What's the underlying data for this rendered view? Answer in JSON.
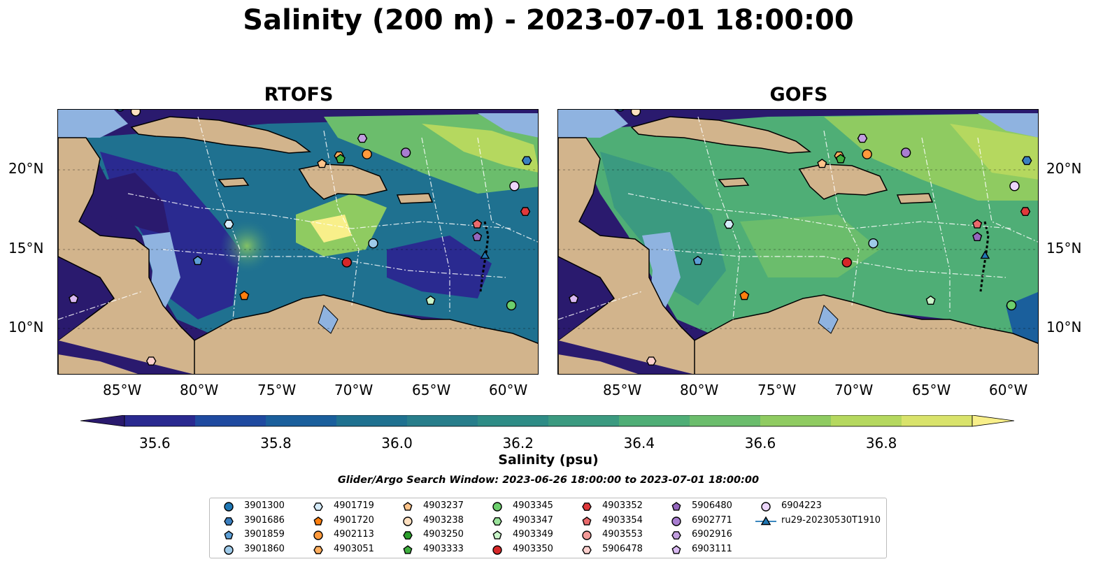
{
  "title": "Salinity (200 m) - 2023-07-01 18:00:00",
  "panels": [
    {
      "title": "RTOFS"
    },
    {
      "title": "GOFS"
    }
  ],
  "axes": {
    "lon_labels": [
      "85°W",
      "80°W",
      "75°W",
      "70°W",
      "65°W",
      "60°W"
    ],
    "lat_labels": [
      "20°N",
      "15°N",
      "10°N"
    ]
  },
  "colorbar": {
    "label": "Salinity (psu)",
    "ticks": [
      "35.6",
      "35.8",
      "36.0",
      "36.2",
      "36.4",
      "36.6",
      "36.8"
    ],
    "range": [
      35.55,
      36.95
    ],
    "extend": "both",
    "colors": [
      "#2a1a6e",
      "#2a2a90",
      "#1f4aa0",
      "#1a5f9c",
      "#1f7190",
      "#287e8b",
      "#2e8c86",
      "#3b9a80",
      "#4fae76",
      "#6bbd6c",
      "#8fcb61",
      "#b5d85f",
      "#d9e36b",
      "#f8ef8a"
    ]
  },
  "search_window": "Glider/Argo Search Window: 2023-06-26 18:00:00 to 2023-07-01 18:00:00",
  "legend": {
    "items": [
      {
        "label": "3901300",
        "shape": "circle",
        "color": "#1f77b4"
      },
      {
        "label": "3901686",
        "shape": "hexagon",
        "color": "#3a7fc0"
      },
      {
        "label": "3901859",
        "shape": "pentagon",
        "color": "#5d9fd6"
      },
      {
        "label": "3901860",
        "shape": "circle",
        "color": "#9ecae9"
      },
      {
        "label": "4901719",
        "shape": "hexagon",
        "color": "#d6ecfa"
      },
      {
        "label": "4901720",
        "shape": "pentagon",
        "color": "#ff7f0e"
      },
      {
        "label": "4902113",
        "shape": "circle",
        "color": "#ff9a3c"
      },
      {
        "label": "4903051",
        "shape": "hexagon",
        "color": "#ffae5e"
      },
      {
        "label": "4903237",
        "shape": "pentagon",
        "color": "#ffc48a"
      },
      {
        "label": "4903238",
        "shape": "circle",
        "color": "#ffe0c0"
      },
      {
        "label": "4903250",
        "shape": "hexagon",
        "color": "#2ca02c"
      },
      {
        "label": "4903333",
        "shape": "pentagon",
        "color": "#3fb03f"
      },
      {
        "label": "4903345",
        "shape": "circle",
        "color": "#6ccf6c"
      },
      {
        "label": "4903347",
        "shape": "hexagon",
        "color": "#9be39b"
      },
      {
        "label": "4903349",
        "shape": "pentagon",
        "color": "#c9f5c9"
      },
      {
        "label": "4903350",
        "shape": "circle",
        "color": "#d62728"
      },
      {
        "label": "4903352",
        "shape": "hexagon",
        "color": "#e0393b"
      },
      {
        "label": "4903354",
        "shape": "pentagon",
        "color": "#ea6a6c"
      },
      {
        "label": "4903553",
        "shape": "circle",
        "color": "#f39a98"
      },
      {
        "label": "5906478",
        "shape": "hexagon",
        "color": "#fccfcd"
      },
      {
        "label": "5906480",
        "shape": "pentagon",
        "color": "#9467bd"
      },
      {
        "label": "6902771",
        "shape": "circle",
        "color": "#a87dd0"
      },
      {
        "label": "6902916",
        "shape": "hexagon",
        "color": "#c29fe0"
      },
      {
        "label": "6903111",
        "shape": "pentagon",
        "color": "#d9b9f2"
      },
      {
        "label": "6904223",
        "shape": "circle",
        "color": "#ecd6fb"
      },
      {
        "label": "ru29-20230530T1910",
        "shape": "triangle-line",
        "color": "#1f77b4"
      }
    ]
  },
  "floats": [
    {
      "id": "3901300",
      "lon": -85.0,
      "lat": 23.9
    },
    {
      "id": "4903238",
      "lon": -84.0,
      "lat": 23.6
    },
    {
      "id": "6903111",
      "lon": -88.0,
      "lat": 11.8
    },
    {
      "id": "5906478",
      "lon": -83.0,
      "lat": 7.9
    },
    {
      "id": "4903051",
      "lon": -70.9,
      "lat": 20.8
    },
    {
      "id": "4901720",
      "lon": -77.0,
      "lat": 12.0
    },
    {
      "id": "4903237",
      "lon": -72.0,
      "lat": 20.3
    },
    {
      "id": "4903333",
      "lon": -70.8,
      "lat": 20.6
    },
    {
      "id": "4902113",
      "lon": -69.1,
      "lat": 20.9
    },
    {
      "id": "6902916",
      "lon": -69.4,
      "lat": 21.9
    },
    {
      "id": "6902771",
      "lon": -66.6,
      "lat": 21.0
    },
    {
      "id": "3901686",
      "lon": -58.8,
      "lat": 20.5
    },
    {
      "id": "6904223",
      "lon": -59.6,
      "lat": 18.9
    },
    {
      "id": "4903352",
      "lon": -58.9,
      "lat": 17.3
    },
    {
      "id": "4901719",
      "lon": -78.0,
      "lat": 16.5
    },
    {
      "id": "3901859",
      "lon": -80.0,
      "lat": 14.2
    },
    {
      "id": "3901860",
      "lon": -68.7,
      "lat": 15.3
    },
    {
      "id": "4903350",
      "lon": -70.4,
      "lat": 14.1
    },
    {
      "id": "4903354",
      "lon": -62.0,
      "lat": 16.5
    },
    {
      "id": "5906480",
      "lon": -62.0,
      "lat": 15.7
    },
    {
      "id": "ru29-20230530T1910",
      "lon": -61.5,
      "lat": 14.5
    },
    {
      "id": "4903349",
      "lon": -65.0,
      "lat": 11.7
    },
    {
      "id": "4903345",
      "lon": -59.8,
      "lat": 11.4
    }
  ]
}
